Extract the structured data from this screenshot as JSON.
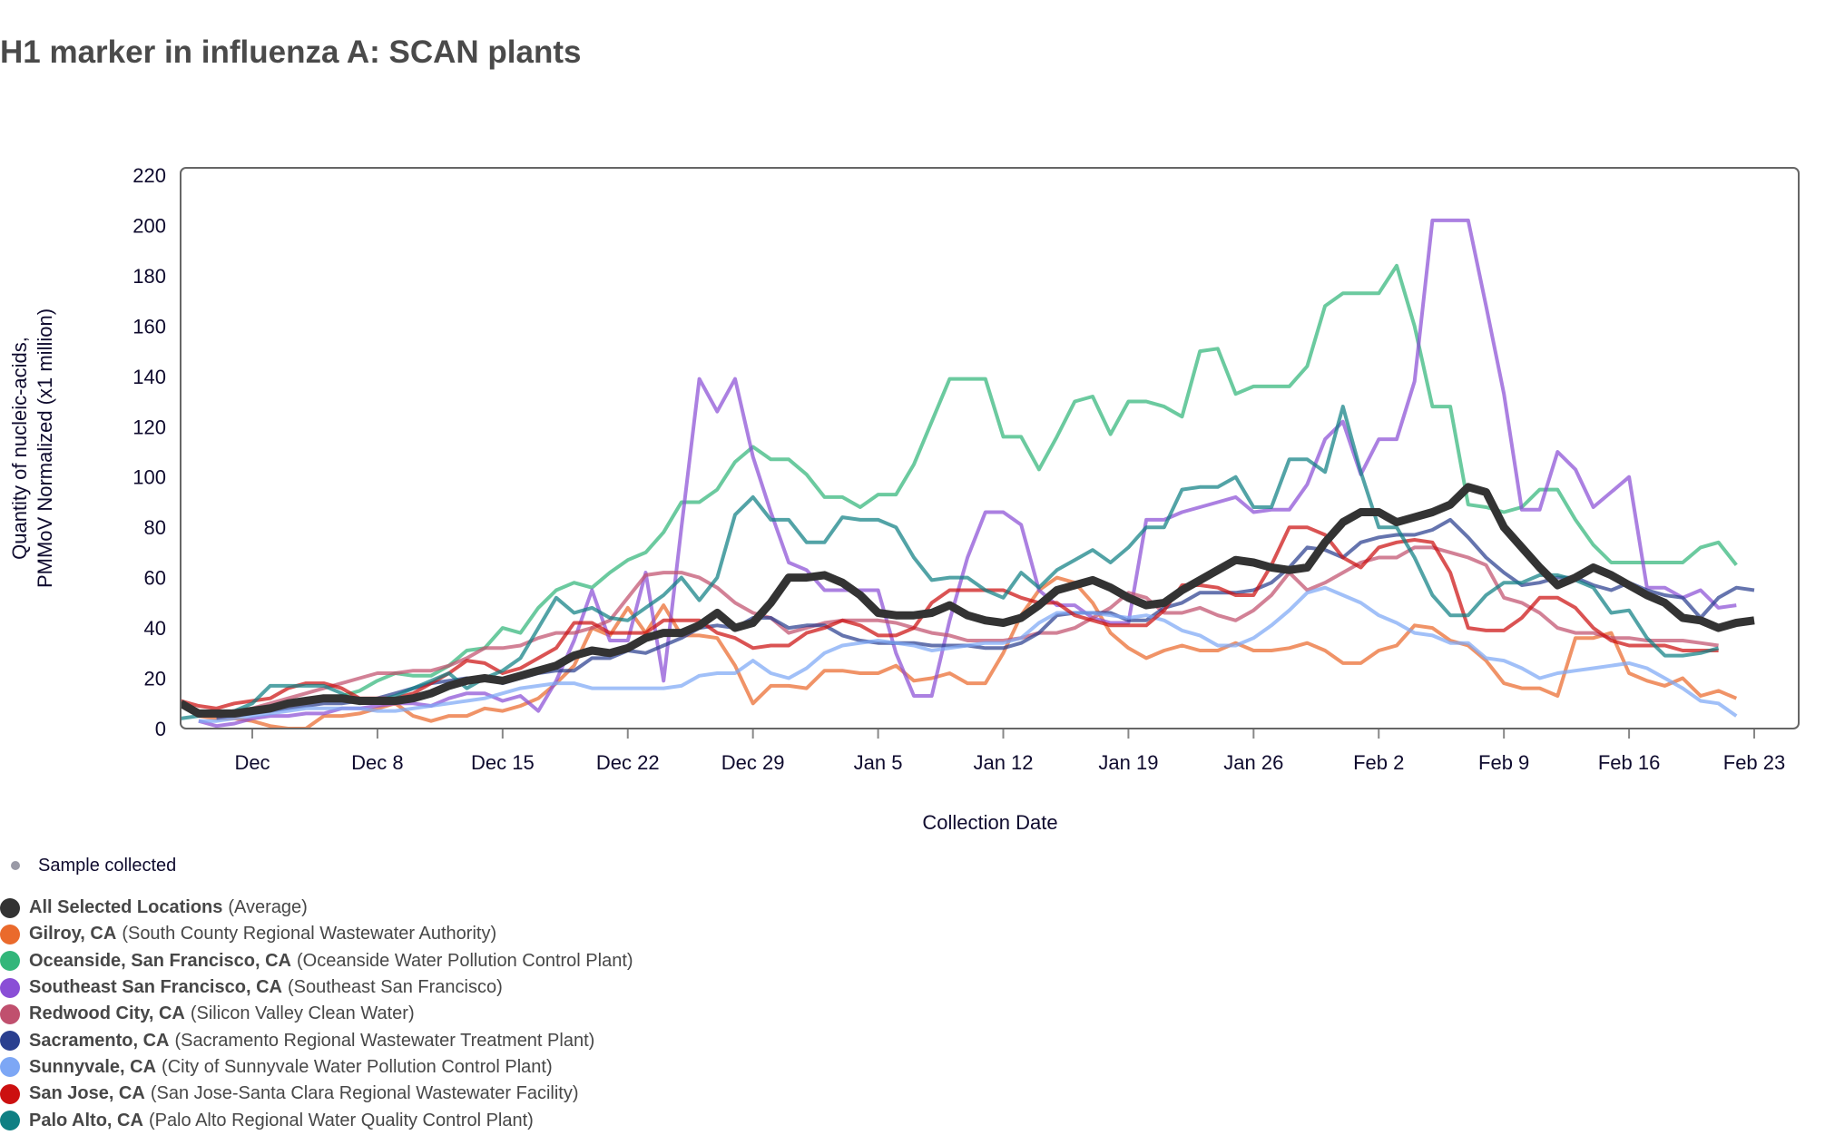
{
  "title": "H1 marker in influenza A: SCAN plants",
  "chart_data": {
    "type": "line",
    "title": "H1 marker in influenza A: SCAN plants",
    "xlabel": "Collection Date",
    "ylabel_lines": [
      "Quantity of nucleic-acids,",
      "PMMoV Normalized (x1 million)"
    ],
    "ylim": [
      0,
      220
    ],
    "yticks": [
      0,
      20,
      40,
      60,
      80,
      100,
      120,
      140,
      160,
      180,
      200,
      220
    ],
    "x_start_day": -4,
    "x_range_days": [
      -4,
      86
    ],
    "x_day_zero": "Dec 1",
    "xticks": [
      {
        "day": 0,
        "label": "Dec"
      },
      {
        "day": 7,
        "label": "Dec 8"
      },
      {
        "day": 14,
        "label": "Dec 15"
      },
      {
        "day": 21,
        "label": "Dec 22"
      },
      {
        "day": 28,
        "label": "Dec 29"
      },
      {
        "day": 35,
        "label": "Jan 5"
      },
      {
        "day": 42,
        "label": "Jan 12"
      },
      {
        "day": 49,
        "label": "Jan 19"
      },
      {
        "day": 56,
        "label": "Jan 26"
      },
      {
        "day": 63,
        "label": "Feb 2"
      },
      {
        "day": 70,
        "label": "Feb 9"
      },
      {
        "day": 77,
        "label": "Feb 16"
      },
      {
        "day": 84,
        "label": "Feb 23"
      }
    ],
    "grid": false,
    "legend_placement": "bottom-left",
    "series": [
      {
        "name": "Gilroy, CA",
        "facility": "(South County Regional Wastewater Authority)",
        "color": "#ea6a2c",
        "start_day": -3,
        "values": [
          5,
          4,
          4,
          3,
          1,
          0,
          0,
          5,
          5,
          6,
          8,
          10,
          5,
          3,
          5,
          5,
          8,
          7,
          9,
          12,
          18,
          25,
          40,
          37,
          48,
          38,
          49,
          37,
          37,
          36,
          25,
          10,
          17,
          17,
          16,
          23,
          23,
          22,
          22,
          25,
          19,
          20,
          22,
          18,
          18,
          30,
          45,
          55,
          60,
          58,
          50,
          38,
          32,
          28,
          31,
          33,
          31,
          31,
          34,
          31,
          31,
          32,
          34,
          31,
          26,
          26,
          31,
          33,
          41,
          40,
          35,
          33,
          27,
          18,
          16,
          16,
          13,
          36,
          36,
          38,
          22,
          19,
          17,
          20,
          13,
          15,
          12
        ]
      },
      {
        "name": "Oceanside, San Francisco, CA",
        "facility": "(Oceanside Water Pollution Control Plant)",
        "color": "#32b67a",
        "start_day": -2,
        "values": [
          6,
          7,
          8,
          9,
          10,
          11,
          12,
          13,
          15,
          19,
          22,
          21,
          21,
          25,
          31,
          32,
          40,
          38,
          48,
          55,
          58,
          56,
          62,
          67,
          70,
          78,
          90,
          90,
          95,
          106,
          112,
          107,
          107,
          101,
          92,
          92,
          88,
          93,
          93,
          105,
          122,
          139,
          139,
          139,
          116,
          116,
          103,
          116,
          130,
          132,
          117,
          130,
          130,
          128,
          124,
          150,
          151,
          133,
          136,
          136,
          136,
          144,
          168,
          173,
          173,
          173,
          184,
          160,
          128,
          128,
          89,
          88,
          86,
          88,
          95,
          95,
          83,
          73,
          66,
          66,
          66,
          66,
          66,
          72,
          74,
          65
        ]
      },
      {
        "name": "Southeast San Francisco, CA",
        "facility": "(Southeast San Francisco)",
        "color": "#8a4fd6",
        "start_day": -3,
        "values": [
          3,
          1,
          2,
          4,
          5,
          5,
          6,
          6,
          8,
          8,
          9,
          10,
          10,
          9,
          12,
          14,
          14,
          11,
          13,
          7,
          19,
          35,
          55,
          35,
          35,
          62,
          19,
          80,
          139,
          126,
          139,
          108,
          86,
          66,
          63,
          55,
          55,
          55,
          55,
          30,
          13,
          13,
          43,
          68,
          86,
          86,
          81,
          55,
          49,
          49,
          44,
          42,
          42,
          83,
          83,
          86,
          88,
          90,
          92,
          86,
          87,
          87,
          97,
          115,
          122,
          101,
          115,
          115,
          138,
          202,
          202,
          202,
          168,
          133,
          87,
          87,
          110,
          103,
          88,
          94,
          100,
          56,
          56,
          52,
          55,
          48,
          49
        ]
      },
      {
        "name": "Redwood City, CA",
        "facility": "(Silicon Valley Clean Water)",
        "color": "#c0506e",
        "start_day": -3,
        "values": [
          5,
          6,
          7,
          8,
          10,
          12,
          14,
          16,
          18,
          20,
          22,
          22,
          23,
          23,
          25,
          28,
          32,
          32,
          33,
          36,
          38,
          38,
          40,
          43,
          52,
          61,
          62,
          62,
          60,
          56,
          50,
          46,
          44,
          38,
          40,
          42,
          43,
          43,
          43,
          42,
          40,
          38,
          37,
          35,
          35,
          35,
          36,
          38,
          38,
          40,
          44,
          48,
          54,
          52,
          46,
          46,
          48,
          45,
          43,
          47,
          53,
          62,
          55,
          58,
          62,
          66,
          68,
          68,
          72,
          72,
          70,
          68,
          65,
          52,
          50,
          46,
          40,
          38,
          38,
          36,
          36,
          35,
          35,
          35,
          34,
          33
        ]
      },
      {
        "name": "Sacramento, CA",
        "facility": "(Sacramento Regional Wastewater Treatment Plant)",
        "color": "#2a3f8f",
        "start_day": -2,
        "values": [
          4,
          5,
          6,
          7,
          8,
          9,
          10,
          10,
          11,
          12,
          14,
          16,
          18,
          19,
          20,
          20,
          18,
          20,
          22,
          23,
          23,
          28,
          28,
          31,
          30,
          33,
          36,
          40,
          41,
          40,
          44,
          44,
          40,
          41,
          41,
          37,
          35,
          34,
          34,
          34,
          33,
          33,
          33,
          32,
          32,
          34,
          38,
          45,
          46,
          46,
          46,
          43,
          43,
          48,
          50,
          54,
          54,
          54,
          55,
          58,
          64,
          72,
          71,
          68,
          74,
          76,
          77,
          77,
          79,
          83,
          76,
          68,
          62,
          57,
          58,
          60,
          60,
          57,
          55,
          58,
          55,
          53,
          52,
          44,
          52,
          56,
          55
        ]
      },
      {
        "name": "Sunnyvale, CA",
        "facility": "(City of Sunnyvale Water Pollution Control Plant)",
        "color": "#7da7f5",
        "start_day": -3,
        "values": [
          3,
          3,
          4,
          5,
          6,
          7,
          8,
          8,
          8,
          8,
          7,
          7,
          8,
          9,
          10,
          11,
          12,
          14,
          16,
          17,
          18,
          18,
          16,
          16,
          16,
          16,
          16,
          17,
          21,
          22,
          22,
          27,
          22,
          20,
          24,
          30,
          33,
          34,
          35,
          34,
          33,
          31,
          32,
          33,
          34,
          34,
          36,
          42,
          46,
          46,
          46,
          45,
          44,
          45,
          43,
          39,
          37,
          33,
          33,
          36,
          41,
          47,
          54,
          56,
          53,
          50,
          45,
          42,
          38,
          37,
          34,
          34,
          28,
          27,
          24,
          20,
          22,
          23,
          24,
          25,
          26,
          24,
          20,
          16,
          11,
          10,
          5
        ]
      },
      {
        "name": "San Jose, CA",
        "facility": "(San Jose-Santa Clara Regional Wastewater Facility)",
        "color": "#cc1010",
        "start_day": -4,
        "values": [
          11,
          9,
          8,
          10,
          11,
          12,
          16,
          18,
          18,
          16,
          12,
          12,
          12,
          14,
          18,
          22,
          27,
          26,
          22,
          24,
          28,
          32,
          42,
          42,
          38,
          38,
          38,
          43,
          43,
          43,
          38,
          36,
          32,
          33,
          33,
          38,
          40,
          43,
          41,
          37,
          37,
          40,
          50,
          55,
          55,
          55,
          55,
          52,
          50,
          50,
          45,
          43,
          41,
          41,
          41,
          47,
          57,
          57,
          56,
          53,
          53,
          65,
          80,
          80,
          77,
          68,
          64,
          72,
          74,
          75,
          74,
          62,
          40,
          39,
          39,
          44,
          52,
          52,
          48,
          40,
          35,
          33,
          33,
          33,
          31,
          31,
          31
        ]
      },
      {
        "name": "Palo Alto, CA",
        "facility": "(Palo Alto Regional Water Quality Control Plant)",
        "color": "#0f7f83",
        "start_day": -4,
        "values": [
          4,
          5,
          6,
          7,
          10,
          17,
          17,
          17,
          17,
          14,
          10,
          11,
          13,
          16,
          19,
          22,
          16,
          20,
          23,
          28,
          40,
          52,
          46,
          48,
          44,
          43,
          48,
          53,
          60,
          51,
          60,
          85,
          92,
          83,
          83,
          74,
          74,
          84,
          83,
          83,
          80,
          68,
          59,
          60,
          60,
          55,
          52,
          62,
          56,
          63,
          67,
          71,
          66,
          72,
          80,
          80,
          95,
          96,
          96,
          100,
          88,
          88,
          107,
          107,
          102,
          128,
          102,
          80,
          80,
          68,
          53,
          45,
          45,
          53,
          58,
          58,
          61,
          61,
          59,
          56,
          46,
          47,
          36,
          29,
          29,
          30,
          32
        ]
      },
      {
        "name": "All Selected Locations",
        "facility": "(Average)",
        "color": "#333333",
        "start_day": -4,
        "bold": true,
        "values": [
          10,
          6,
          6,
          6,
          7,
          8,
          10,
          11,
          12,
          12,
          11,
          11,
          11,
          12,
          14,
          17,
          19,
          20,
          19,
          21,
          23,
          25,
          29,
          31,
          30,
          32,
          36,
          38,
          38,
          41,
          46,
          40,
          42,
          50,
          60,
          60,
          61,
          58,
          53,
          46,
          45,
          45,
          46,
          49,
          45,
          43,
          42,
          44,
          49,
          55,
          57,
          59,
          56,
          52,
          49,
          50,
          55,
          59,
          63,
          67,
          66,
          64,
          63,
          64,
          74,
          82,
          86,
          86,
          82,
          84,
          86,
          89,
          96,
          94,
          80,
          72,
          64,
          57,
          60,
          64,
          61,
          57,
          53,
          50,
          44,
          43,
          40,
          42,
          43
        ]
      }
    ]
  },
  "legend": {
    "sample_label": "Sample collected",
    "items": [
      {
        "name": "All Selected Locations",
        "facility": "(Average)",
        "color": "#333333"
      },
      {
        "name": "Gilroy, CA",
        "facility": "(South County Regional Wastewater Authority)",
        "color": "#ea6a2c"
      },
      {
        "name": "Oceanside, San Francisco, CA",
        "facility": "(Oceanside Water Pollution Control Plant)",
        "color": "#32b67a"
      },
      {
        "name": "Southeast San Francisco, CA",
        "facility": "(Southeast San Francisco)",
        "color": "#8a4fd6"
      },
      {
        "name": "Redwood City, CA",
        "facility": "(Silicon Valley Clean Water)",
        "color": "#c0506e"
      },
      {
        "name": "Sacramento, CA",
        "facility": "(Sacramento Regional Wastewater Treatment Plant)",
        "color": "#2a3f8f"
      },
      {
        "name": "Sunnyvale, CA",
        "facility": "(City of Sunnyvale Water Pollution Control Plant)",
        "color": "#7da7f5"
      },
      {
        "name": "San Jose, CA",
        "facility": "(San Jose-Santa Clara Regional Wastewater Facility)",
        "color": "#cc1010"
      },
      {
        "name": "Palo Alto, CA",
        "facility": "(Palo Alto Regional Water Quality Control Plant)",
        "color": "#0f7f83"
      }
    ]
  }
}
